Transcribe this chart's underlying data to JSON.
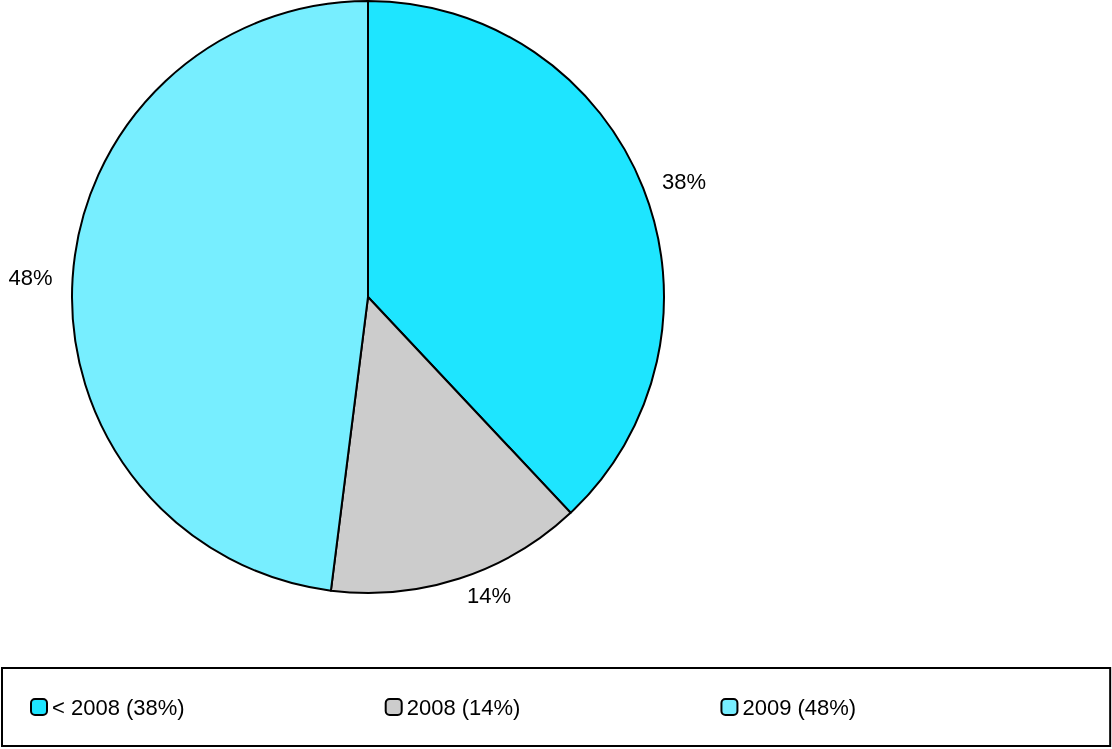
{
  "chart_data": {
    "type": "pie",
    "categories": [
      "< 2008 (38%)",
      "2008 (14%)",
      "2009 (48%)"
    ],
    "values": [
      38,
      14,
      48
    ],
    "colors": [
      "#1ee5ff",
      "#cccccc",
      "#77eeff"
    ],
    "value_labels": [
      "38%",
      "14%",
      "48%"
    ],
    "legend": "bottom"
  }
}
